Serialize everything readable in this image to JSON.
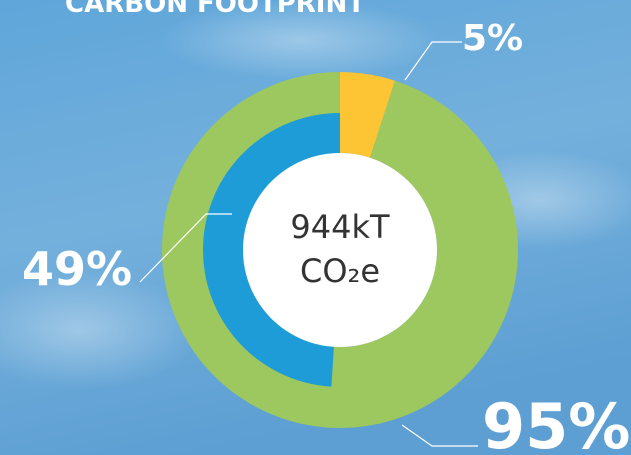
{
  "chart_data": {
    "type": "donut",
    "title": "CARBON FOOTPRINT",
    "center_label": [
      "944kT",
      "CO₂e"
    ],
    "rings": [
      {
        "values": [
          5,
          95
        ],
        "value_labels": [
          "5%",
          "95%"
        ],
        "colors": [
          "#fdc433",
          "#9dc75f"
        ]
      },
      {
        "values": [
          49
        ],
        "value_labels": [
          "49%"
        ],
        "colors": [
          "#1d9cd8"
        ]
      }
    ]
  }
}
